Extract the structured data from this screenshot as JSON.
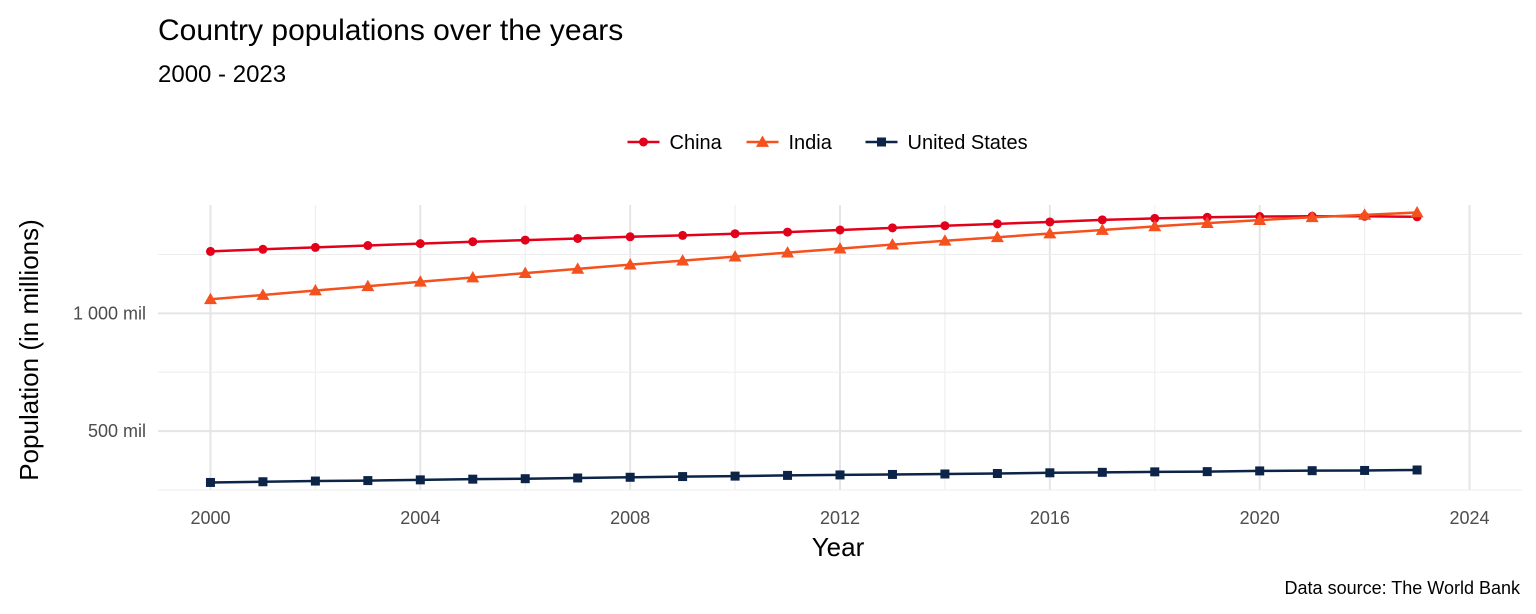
{
  "chart_data": {
    "type": "line",
    "title": "Country populations over the years",
    "subtitle": "2000 - 2023",
    "xlabel": "Year",
    "ylabel": "Population (in millions)",
    "caption": "Data source: The World Bank",
    "xlim": [
      1999,
      2025
    ],
    "ylim": [
      250,
      1460
    ],
    "xticks": [
      2000,
      2004,
      2008,
      2012,
      2016,
      2020,
      2024
    ],
    "xtick_labels": [
      "2000",
      "2004",
      "2008",
      "2012",
      "2016",
      "2020",
      "2024"
    ],
    "yticks": [
      500,
      1000
    ],
    "ytick_labels": [
      "500 mil",
      "1 000 mil"
    ],
    "grid": true,
    "legend_position": "top",
    "x": [
      2000,
      2001,
      2002,
      2003,
      2004,
      2005,
      2006,
      2007,
      2008,
      2009,
      2010,
      2011,
      2012,
      2013,
      2014,
      2015,
      2016,
      2017,
      2018,
      2019,
      2020,
      2021,
      2022,
      2023
    ],
    "series": [
      {
        "name": "China",
        "color": "#e3001b",
        "marker": "circle",
        "values": [
          1263,
          1272,
          1280,
          1288,
          1296,
          1304,
          1311,
          1318,
          1325,
          1331,
          1338,
          1345,
          1354,
          1363,
          1372,
          1380,
          1388,
          1397,
          1403,
          1408,
          1411,
          1412,
          1412,
          1410
        ]
      },
      {
        "name": "India",
        "color": "#f4511e",
        "marker": "triangle",
        "values": [
          1060,
          1078,
          1097,
          1115,
          1134,
          1152,
          1171,
          1189,
          1207,
          1224,
          1241,
          1258,
          1275,
          1292,
          1308,
          1323,
          1339,
          1354,
          1369,
          1383,
          1396,
          1408,
          1418,
          1428
        ]
      },
      {
        "name": "United States",
        "color": "#0b2447",
        "marker": "square",
        "values": [
          282,
          285,
          288,
          290,
          293,
          296,
          298,
          301,
          304,
          307,
          309,
          312,
          314,
          316,
          318,
          320,
          323,
          325,
          327,
          328,
          331,
          332,
          333,
          335
        ]
      }
    ]
  }
}
